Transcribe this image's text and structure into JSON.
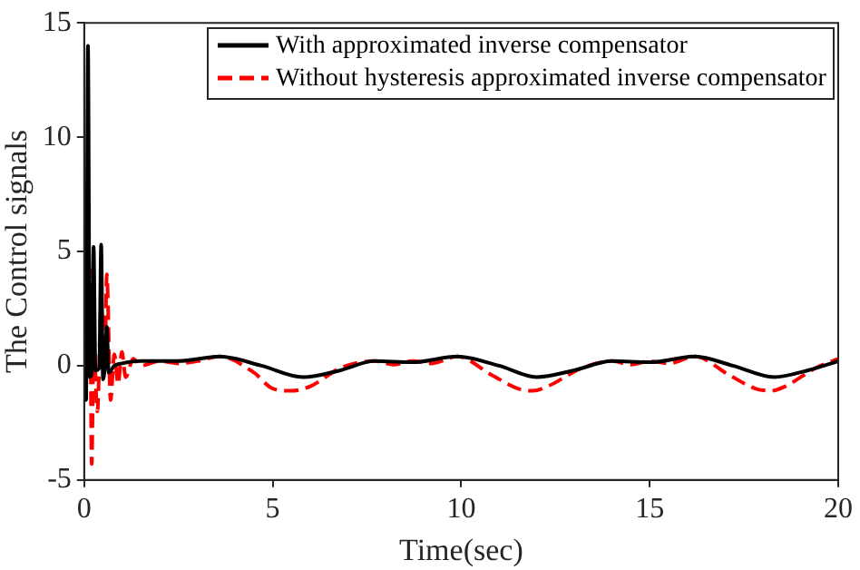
{
  "chart_data": {
    "type": "line",
    "xlabel": "Time(sec)",
    "ylabel": "The Control signals",
    "xlim": [
      0,
      20
    ],
    "xticks": [
      0,
      5,
      10,
      15,
      20
    ],
    "ylim": [
      -5,
      15
    ],
    "yticks": [
      -5,
      0,
      5,
      10,
      15
    ],
    "grid": false,
    "legend": "top right",
    "marker": "none",
    "series": [
      {
        "name": "With approximated inverse compensator",
        "color": "#000000",
        "line_style": "solid",
        "x": [
          0,
          0.05,
          0.1,
          0.15,
          0.2,
          0.25,
          0.3,
          0.4,
          0.45,
          0.5,
          0.55,
          0.6,
          0.65,
          0.8,
          1,
          1.5,
          2.5,
          3.6,
          4.7,
          5.8,
          6.8,
          7.7,
          8.7,
          9.9,
          11,
          12,
          13,
          14,
          15,
          16.2,
          17.2,
          18.3,
          19.2,
          20
        ],
        "values": [
          0,
          -1.5,
          14,
          -0.5,
          -0.3,
          5.2,
          -0.2,
          -0.1,
          5.3,
          -0.6,
          0,
          1.7,
          -0.3,
          0,
          0.1,
          0.2,
          0.2,
          0.4,
          0,
          -0.5,
          -0.2,
          0.2,
          0.15,
          0.4,
          0,
          -0.5,
          -0.2,
          0.2,
          0.15,
          0.4,
          0,
          -0.5,
          -0.2,
          0.2
        ]
      },
      {
        "name": "Without hysteresis approximated inverse compensator",
        "color": "#ff0000",
        "line_style": "dashed",
        "x": [
          0,
          0.1,
          0.15,
          0.2,
          0.25,
          0.35,
          0.45,
          0.55,
          0.6,
          0.7,
          0.8,
          0.9,
          1,
          1.1,
          1.3,
          1.5,
          2,
          2.5,
          3,
          3.6,
          4.5,
          5,
          5.5,
          6,
          6.8,
          7.7,
          8.2,
          8.7,
          9.2,
          9.9,
          10.8,
          11.5,
          11.9,
          12.3,
          13.2,
          14,
          14.5,
          15,
          15.5,
          16.2,
          17.1,
          17.8,
          18.2,
          18.6,
          19.4,
          20
        ],
        "values": [
          0,
          2,
          4.2,
          -4.3,
          1,
          -2,
          2.5,
          0.5,
          4,
          -1.5,
          0.5,
          -0.8,
          0.6,
          -0.5,
          0.3,
          0,
          0.2,
          0.1,
          0.2,
          0.4,
          -0.3,
          -1,
          -1.1,
          -0.9,
          -0.1,
          0.2,
          0.05,
          0.2,
          0.1,
          0.4,
          -0.4,
          -1,
          -1.1,
          -0.9,
          -0.1,
          0.2,
          0.05,
          0.2,
          0.1,
          0.4,
          -0.4,
          -1,
          -1.1,
          -0.9,
          -0.1,
          0.3
        ]
      }
    ]
  }
}
